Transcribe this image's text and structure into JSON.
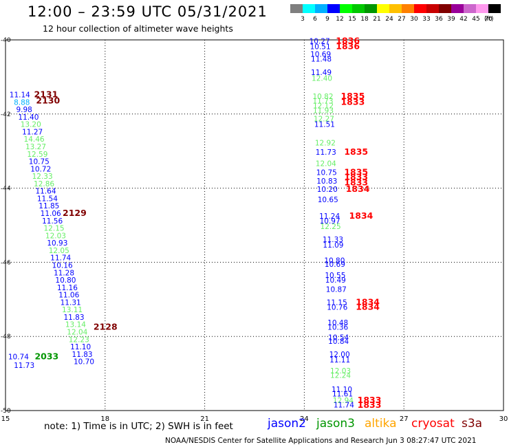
{
  "header": {
    "title": "12:00 – 23:59 UTC 05/31/2021",
    "subtitle": "12 hour collection of altimeter wave heights"
  },
  "colorbar": {
    "unit": "(ft)",
    "labels": [
      "3",
      "6",
      "9",
      "12",
      "15",
      "18",
      "21",
      "24",
      "27",
      "30",
      "33",
      "36",
      "39",
      "42",
      "45",
      "70"
    ],
    "colors": [
      "#7f7f7f",
      "#00ffff",
      "#00b0ff",
      "#0000ff",
      "#00ff00",
      "#00c800",
      "#009600",
      "#ffff00",
      "#ffc000",
      "#ff8000",
      "#ff0000",
      "#c80000",
      "#800000",
      "#990099",
      "#cc66cc",
      "#ff99ee",
      "#000000"
    ]
  },
  "legend": {
    "note": "note:  1) Time is in UTC; 2) SWH is in feet",
    "satellites": [
      {
        "name": "jason2",
        "color": "#0000ff"
      },
      {
        "name": "jason3",
        "color": "#009600"
      },
      {
        "name": "altika",
        "color": "#ffa500"
      },
      {
        "name": "cryosat",
        "color": "#ff0000"
      },
      {
        "name": "s3a",
        "color": "#800000"
      }
    ]
  },
  "footer": "NOAA/NESDIS Center for Satellite Applications and Research    Jun  3 08:27:47 UTC 2021",
  "chart_data": {
    "type": "scatter",
    "title": "12:00 – 23:59 UTC 05/31/2021",
    "subtitle": "12 hour collection of altimeter wave heights",
    "xlim": [
      15,
      30
    ],
    "ylim": [
      -50,
      -40
    ],
    "xticks": [
      "15",
      "18",
      "21",
      "24",
      "27",
      "30"
    ],
    "yticks": [
      "-40",
      "-42",
      "-44",
      "-46",
      "-48",
      "-50"
    ],
    "grid": true,
    "colors": {
      "grey": "#7f7f7f",
      "cyan": "#00ffff",
      "skyblue": "#00b0ff",
      "blue": "#0000ff",
      "green": "#00ff00",
      "lightgreen": "#66ee66",
      "darkgreen": "#009600",
      "red": "#ff0000",
      "maroon": "#800000"
    },
    "wave_labels": [
      {
        "x": 15.12,
        "y": -41.55,
        "text": "11.14",
        "color": "blue"
      },
      {
        "x": 15.25,
        "y": -41.75,
        "text": "8.88",
        "color": "skyblue"
      },
      {
        "x": 15.32,
        "y": -41.95,
        "text": "9.98",
        "color": "blue"
      },
      {
        "x": 15.38,
        "y": -42.15,
        "text": "11.40",
        "color": "blue"
      },
      {
        "x": 15.45,
        "y": -42.35,
        "text": "13.20",
        "color": "lightgreen"
      },
      {
        "x": 15.5,
        "y": -42.55,
        "text": "11.27",
        "color": "blue"
      },
      {
        "x": 15.55,
        "y": -42.75,
        "text": "14.46",
        "color": "lightgreen"
      },
      {
        "x": 15.6,
        "y": -42.95,
        "text": "13.27",
        "color": "lightgreen"
      },
      {
        "x": 15.65,
        "y": -43.15,
        "text": "12.59",
        "color": "lightgreen"
      },
      {
        "x": 15.7,
        "y": -43.35,
        "text": "10.75",
        "color": "blue"
      },
      {
        "x": 15.75,
        "y": -43.55,
        "text": "10.72",
        "color": "blue"
      },
      {
        "x": 15.8,
        "y": -43.75,
        "text": "12.33",
        "color": "lightgreen"
      },
      {
        "x": 15.85,
        "y": -43.95,
        "text": "12.86",
        "color": "lightgreen"
      },
      {
        "x": 15.9,
        "y": -44.15,
        "text": "11.64",
        "color": "blue"
      },
      {
        "x": 15.95,
        "y": -44.35,
        "text": "11.54",
        "color": "blue"
      },
      {
        "x": 16.0,
        "y": -44.55,
        "text": "11.85",
        "color": "blue"
      },
      {
        "x": 16.05,
        "y": -44.75,
        "text": "11.06",
        "color": "blue"
      },
      {
        "x": 16.1,
        "y": -44.95,
        "text": "11.56",
        "color": "blue"
      },
      {
        "x": 16.15,
        "y": -45.15,
        "text": "12.15",
        "color": "lightgreen"
      },
      {
        "x": 16.2,
        "y": -45.35,
        "text": "12.03",
        "color": "lightgreen"
      },
      {
        "x": 16.25,
        "y": -45.55,
        "text": "10.93",
        "color": "blue"
      },
      {
        "x": 16.3,
        "y": -45.75,
        "text": "12.05",
        "color": "lightgreen"
      },
      {
        "x": 16.35,
        "y": -45.95,
        "text": "11.74",
        "color": "blue"
      },
      {
        "x": 16.4,
        "y": -46.15,
        "text": "10.16",
        "color": "blue"
      },
      {
        "x": 16.45,
        "y": -46.35,
        "text": "11.28",
        "color": "blue"
      },
      {
        "x": 16.5,
        "y": -46.55,
        "text": "10.80",
        "color": "blue"
      },
      {
        "x": 16.55,
        "y": -46.75,
        "text": "11.16",
        "color": "blue"
      },
      {
        "x": 16.6,
        "y": -46.95,
        "text": "11.06",
        "color": "blue"
      },
      {
        "x": 16.65,
        "y": -47.15,
        "text": "11.31",
        "color": "blue"
      },
      {
        "x": 16.7,
        "y": -47.35,
        "text": "13.11",
        "color": "lightgreen"
      },
      {
        "x": 16.75,
        "y": -47.55,
        "text": "11.83",
        "color": "blue"
      },
      {
        "x": 16.8,
        "y": -47.75,
        "text": "13.14",
        "color": "lightgreen"
      },
      {
        "x": 16.85,
        "y": -47.95,
        "text": "12.04",
        "color": "lightgreen"
      },
      {
        "x": 16.9,
        "y": -48.15,
        "text": "12.23",
        "color": "lightgreen"
      },
      {
        "x": 16.95,
        "y": -48.35,
        "text": "11.10",
        "color": "blue"
      },
      {
        "x": 17.0,
        "y": -48.55,
        "text": "11.83",
        "color": "blue"
      },
      {
        "x": 17.05,
        "y": -48.75,
        "text": "10.70",
        "color": "blue"
      },
      {
        "x": 15.08,
        "y": -48.62,
        "text": "10.74",
        "color": "blue"
      },
      {
        "x": 15.25,
        "y": -48.85,
        "text": "11.73",
        "color": "blue"
      },
      {
        "x": 24.15,
        "y": -40.1,
        "text": "10.27",
        "color": "blue"
      },
      {
        "x": 24.17,
        "y": -40.25,
        "text": "10.51",
        "color": "blue"
      },
      {
        "x": 24.18,
        "y": -40.45,
        "text": "10.69",
        "color": "blue"
      },
      {
        "x": 24.2,
        "y": -40.58,
        "text": "11.48",
        "color": "blue"
      },
      {
        "x": 24.2,
        "y": -40.95,
        "text": "11.49",
        "color": "blue"
      },
      {
        "x": 24.22,
        "y": -41.1,
        "text": "12.40",
        "color": "lightgreen"
      },
      {
        "x": 24.25,
        "y": -41.6,
        "text": "10.82",
        "color": "lightgreen"
      },
      {
        "x": 24.25,
        "y": -41.72,
        "text": "11.73",
        "color": "lightgreen"
      },
      {
        "x": 24.26,
        "y": -41.85,
        "text": "12.12",
        "color": "lightgreen"
      },
      {
        "x": 24.26,
        "y": -41.98,
        "text": "11.93",
        "color": "lightgreen"
      },
      {
        "x": 24.28,
        "y": -42.2,
        "text": "12.27",
        "color": "lightgreen"
      },
      {
        "x": 24.3,
        "y": -42.35,
        "text": "11.51",
        "color": "blue"
      },
      {
        "x": 24.32,
        "y": -42.85,
        "text": "12.92",
        "color": "lightgreen"
      },
      {
        "x": 24.34,
        "y": -43.1,
        "text": "11.73",
        "color": "blue"
      },
      {
        "x": 24.34,
        "y": -43.4,
        "text": "12.04",
        "color": "lightgreen"
      },
      {
        "x": 24.36,
        "y": -43.65,
        "text": "10.75",
        "color": "blue"
      },
      {
        "x": 24.37,
        "y": -43.88,
        "text": "10.83",
        "color": "blue"
      },
      {
        "x": 24.38,
        "y": -44.1,
        "text": "10.20",
        "color": "blue"
      },
      {
        "x": 24.4,
        "y": -44.38,
        "text": "10.65",
        "color": "blue"
      },
      {
        "x": 24.45,
        "y": -44.82,
        "text": "11.24",
        "color": "blue"
      },
      {
        "x": 24.46,
        "y": -44.95,
        "text": "10.97",
        "color": "blue"
      },
      {
        "x": 24.48,
        "y": -45.1,
        "text": "12.25",
        "color": "lightgreen"
      },
      {
        "x": 24.55,
        "y": -45.45,
        "text": "11.33",
        "color": "blue"
      },
      {
        "x": 24.56,
        "y": -45.6,
        "text": "11.09",
        "color": "blue"
      },
      {
        "x": 24.6,
        "y": -46.02,
        "text": "10.80",
        "color": "blue"
      },
      {
        "x": 24.61,
        "y": -46.12,
        "text": "10.69",
        "color": "blue"
      },
      {
        "x": 24.62,
        "y": -46.42,
        "text": "10.55",
        "color": "blue"
      },
      {
        "x": 24.63,
        "y": -46.55,
        "text": "10.49",
        "color": "blue"
      },
      {
        "x": 24.65,
        "y": -46.8,
        "text": "10.87",
        "color": "blue"
      },
      {
        "x": 24.67,
        "y": -47.15,
        "text": "11.15",
        "color": "blue"
      },
      {
        "x": 24.68,
        "y": -47.28,
        "text": "10.76",
        "color": "blue"
      },
      {
        "x": 24.7,
        "y": -47.7,
        "text": "10.48",
        "color": "blue"
      },
      {
        "x": 24.7,
        "y": -47.82,
        "text": "10.36",
        "color": "blue"
      },
      {
        "x": 24.72,
        "y": -48.1,
        "text": "10.54",
        "color": "blue"
      },
      {
        "x": 24.72,
        "y": -48.2,
        "text": "10.84",
        "color": "blue"
      },
      {
        "x": 24.75,
        "y": -48.55,
        "text": "12.00",
        "color": "blue"
      },
      {
        "x": 24.76,
        "y": -48.7,
        "text": "11.11",
        "color": "blue"
      },
      {
        "x": 24.78,
        "y": -49.0,
        "text": "12.03",
        "color": "lightgreen"
      },
      {
        "x": 24.78,
        "y": -49.12,
        "text": "12.24",
        "color": "lightgreen"
      },
      {
        "x": 24.82,
        "y": -49.5,
        "text": "11.10",
        "color": "blue"
      },
      {
        "x": 24.84,
        "y": -49.62,
        "text": "11.61",
        "color": "blue"
      },
      {
        "x": 24.86,
        "y": -49.8,
        "text": "12.94",
        "color": "lightgreen"
      },
      {
        "x": 24.88,
        "y": -49.92,
        "text": "11.74",
        "color": "blue"
      }
    ],
    "time_labels": [
      {
        "x": 15.86,
        "y": -41.55,
        "text": "2131",
        "color": "maroon"
      },
      {
        "x": 15.92,
        "y": -41.72,
        "text": "2130",
        "color": "maroon"
      },
      {
        "x": 16.72,
        "y": -44.75,
        "text": "2129",
        "color": "maroon"
      },
      {
        "x": 17.65,
        "y": -47.82,
        "text": "2128",
        "color": "maroon"
      },
      {
        "x": 15.88,
        "y": -48.62,
        "text": "2033",
        "color": "darkgreen"
      },
      {
        "x": 24.95,
        "y": -40.1,
        "text": "1836",
        "color": "red"
      },
      {
        "x": 24.95,
        "y": -40.25,
        "text": "1836",
        "color": "red"
      },
      {
        "x": 25.1,
        "y": -41.6,
        "text": "1835",
        "color": "red"
      },
      {
        "x": 25.1,
        "y": -41.75,
        "text": "1833",
        "color": "red"
      },
      {
        "x": 25.2,
        "y": -43.1,
        "text": "1835",
        "color": "red"
      },
      {
        "x": 25.2,
        "y": -43.65,
        "text": "1835",
        "color": "red"
      },
      {
        "x": 25.2,
        "y": -43.78,
        "text": "1833",
        "color": "red"
      },
      {
        "x": 25.2,
        "y": -43.92,
        "text": "1833",
        "color": "red"
      },
      {
        "x": 25.25,
        "y": -44.1,
        "text": "1834",
        "color": "red"
      },
      {
        "x": 25.35,
        "y": -44.82,
        "text": "1834",
        "color": "red"
      },
      {
        "x": 25.55,
        "y": -47.15,
        "text": "1834",
        "color": "red"
      },
      {
        "x": 25.55,
        "y": -47.28,
        "text": "1834",
        "color": "red"
      },
      {
        "x": 25.6,
        "y": -49.8,
        "text": "1833",
        "color": "red"
      },
      {
        "x": 25.6,
        "y": -49.93,
        "text": "1833",
        "color": "red"
      }
    ]
  }
}
